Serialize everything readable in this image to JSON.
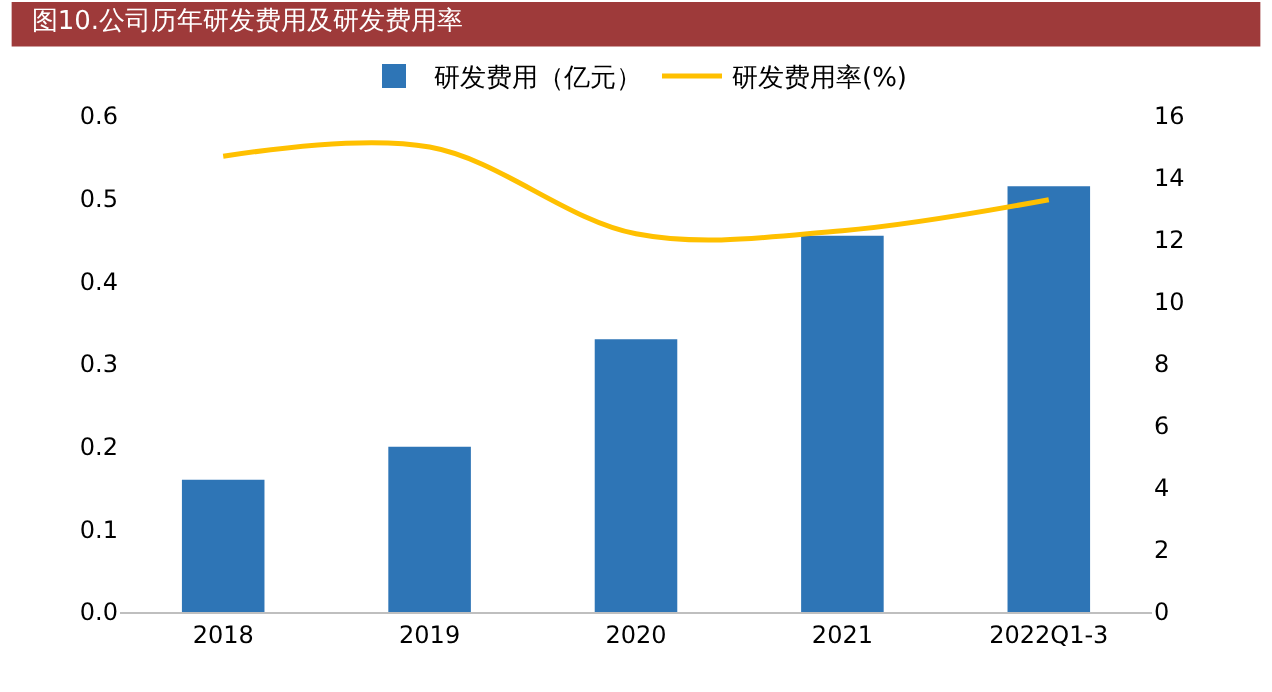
{
  "chart_data": {
    "type": "bar",
    "title": "图10.公司历年研发费用及研发费用率",
    "categories": [
      "2018",
      "2019",
      "2020",
      "2021",
      "2022Q1-3"
    ],
    "series": [
      {
        "name": "研发费用（亿元）",
        "color": "#2e75b6",
        "values": [
          0.16,
          0.2,
          0.33,
          0.455,
          0.515
        ]
      },
      {
        "name": "研发费用率(%)",
        "type": "line",
        "axis": "y2",
        "color": "#ffc000",
        "values": [
          14.7,
          15.0,
          12.2,
          12.3,
          13.3
        ]
      }
    ],
    "ylim": [
      0,
      0.6
    ],
    "yticks": [
      {
        "value": 0,
        "label": "0.0"
      },
      0.1,
      0.2,
      0.3,
      0.4,
      0.5,
      0.6
    ],
    "y2lim": [
      0,
      16
    ],
    "y2ticks": [
      0,
      2,
      4,
      6,
      8,
      10,
      12,
      14,
      16
    ],
    "grid": false,
    "legend": "top",
    "marker": "none"
  }
}
